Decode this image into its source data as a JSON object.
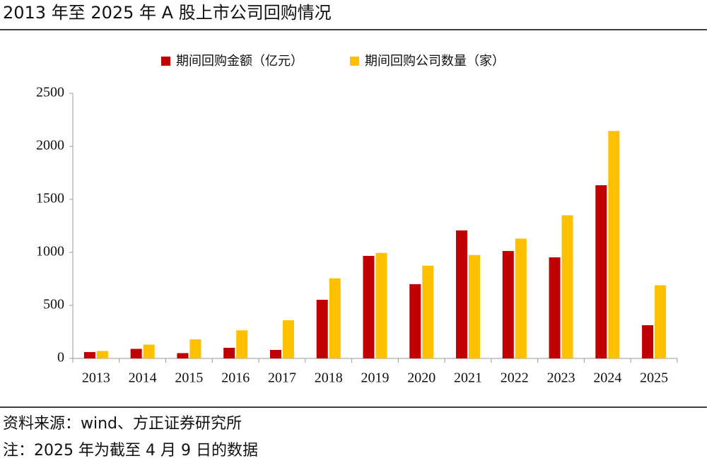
{
  "chart_data": {
    "type": "bar",
    "title": "2013 年至 2025 年 A 股上市公司回购情况",
    "categories": [
      "2013",
      "2014",
      "2015",
      "2016",
      "2017",
      "2018",
      "2019",
      "2020",
      "2021",
      "2022",
      "2023",
      "2024",
      "2025"
    ],
    "series": [
      {
        "name": "期间回购金额（亿元）",
        "color": "#c00000",
        "values": [
          60,
          90,
          50,
          100,
          80,
          553,
          967,
          700,
          1207,
          1013,
          953,
          1633,
          313
        ]
      },
      {
        "name": "期间回购公司数量（家）",
        "color": "#ffc000",
        "values": [
          70,
          130,
          180,
          265,
          360,
          755,
          995,
          875,
          975,
          1130,
          1350,
          2145,
          690
        ]
      }
    ],
    "ylim": [
      0,
      2500
    ],
    "yticks": [
      0,
      500,
      1000,
      1500,
      2000,
      2500
    ],
    "grid": false,
    "legend": "top",
    "source": "资料来源：wind、方正证券研究所",
    "note": "注：2025 年为截至 4 月 9 日的数据"
  }
}
